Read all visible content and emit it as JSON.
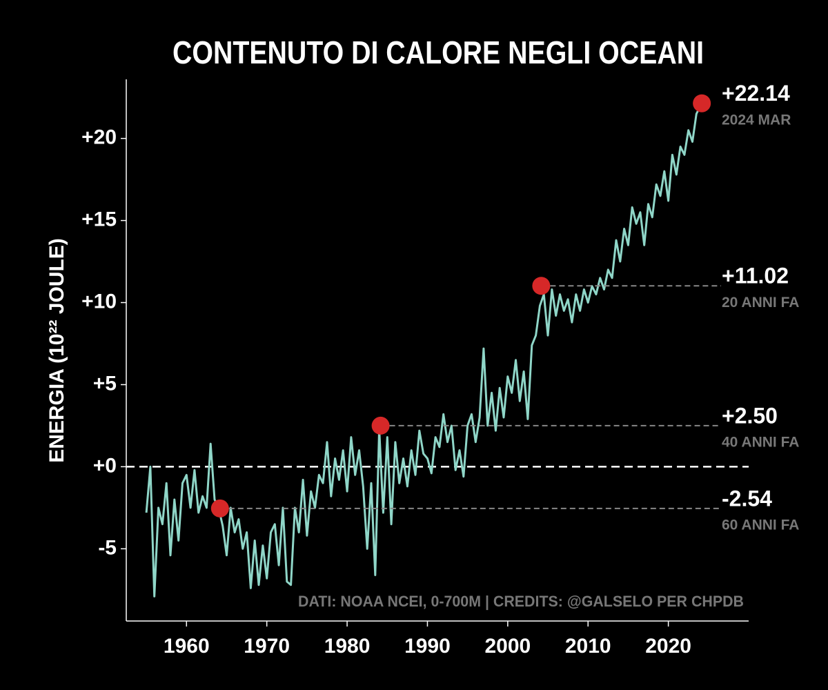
{
  "chart_data": {
    "type": "line",
    "title": "CONTENUTO DI CALORE NEGLI OCEANI",
    "y_label": "ENERGIA (10²² JOULE)",
    "credits": "DATI: NOAA NCEI, 0-700M | CREDITS: @GALSELO PER CHPDB",
    "xlim": [
      1952.5,
      2030
    ],
    "ylim": [
      -9.4,
      23.6
    ],
    "xticks": [
      1960,
      1970,
      1980,
      1990,
      2000,
      2010,
      2020
    ],
    "yticks": [
      -5,
      {
        "value": 0,
        "label": "+0"
      },
      {
        "value": 5,
        "label": "+5"
      },
      {
        "value": 10,
        "label": "+10"
      },
      {
        "value": 15,
        "label": "+15"
      },
      {
        "value": 20,
        "label": "+20"
      }
    ],
    "reference_line": 0,
    "x": [
      1955,
      1955.5,
      1956,
      1956.5,
      1957,
      1957.5,
      1958,
      1958.5,
      1959,
      1959.5,
      1960,
      1960.5,
      1961,
      1961.5,
      1962,
      1962.5,
      1963,
      1963.5,
      1964,
      1964.5,
      1965,
      1965.5,
      1966,
      1966.5,
      1967,
      1967.5,
      1968,
      1968.5,
      1969,
      1969.5,
      1970,
      1970.5,
      1971,
      1971.5,
      1972,
      1972.5,
      1973,
      1973.5,
      1974,
      1974.5,
      1975,
      1975.5,
      1976,
      1976.5,
      1977,
      1977.5,
      1978,
      1978.5,
      1979,
      1979.5,
      1980,
      1980.5,
      1981,
      1981.5,
      1982,
      1982.5,
      1983,
      1983.5,
      1984,
      1984.5,
      1985,
      1985.5,
      1986,
      1986.5,
      1987,
      1987.5,
      1988,
      1988.5,
      1989,
      1989.5,
      1990,
      1990.5,
      1991,
      1991.5,
      1992,
      1992.5,
      1993,
      1993.5,
      1994,
      1994.5,
      1995,
      1995.5,
      1996,
      1996.5,
      1997,
      1997.5,
      1998,
      1998.5,
      1999,
      1999.5,
      2000,
      2000.5,
      2001,
      2001.5,
      2002,
      2002.5,
      2003,
      2003.5,
      2004,
      2004.5,
      2005,
      2005.5,
      2006,
      2006.5,
      2007,
      2007.5,
      2008,
      2008.5,
      2009,
      2009.5,
      2010,
      2010.5,
      2011,
      2011.5,
      2012,
      2012.5,
      2013,
      2013.5,
      2014,
      2014.5,
      2015,
      2015.5,
      2016,
      2016.5,
      2017,
      2017.5,
      2018,
      2018.5,
      2019,
      2019.5,
      2020,
      2020.5,
      2021,
      2021.5,
      2022,
      2022.5,
      2023,
      2023.5,
      2024.17
    ],
    "series": [
      {
        "color": "#8fd6c8",
        "values": [
          -2.8,
          0.0,
          -7.9,
          -2.5,
          -3.5,
          -1.0,
          -5.4,
          -2.0,
          -4.5,
          -1.0,
          -0.5,
          -2.5,
          -0.2,
          -2.8,
          -1.8,
          -2.5,
          1.4,
          -2.0,
          -2.5,
          -3.6,
          -5.4,
          -2.5,
          -4.0,
          -3.2,
          -5.0,
          -4.0,
          -7.4,
          -4.5,
          -7.2,
          -4.8,
          -6.8,
          -4.0,
          -3.5,
          -6.0,
          -2.5,
          -7.0,
          -7.2,
          -2.5,
          -4.0,
          -0.8,
          -4.2,
          -1.5,
          -2.5,
          -0.5,
          -1.0,
          1.5,
          -1.8,
          0.5,
          -0.8,
          1.0,
          -1.5,
          1.8,
          -0.5,
          1.0,
          -1.2,
          -5.0,
          -1.0,
          -6.6,
          2.3,
          -2.8,
          1.8,
          -3.5,
          1.5,
          -1.0,
          0.5,
          -1.2,
          1.0,
          -0.5,
          2.2,
          0.8,
          0.5,
          -0.4,
          1.8,
          1.2,
          3.2,
          1.5,
          2.5,
          -0.2,
          1.0,
          -0.6,
          2.5,
          3.2,
          1.5,
          3.0,
          7.2,
          2.5,
          4.5,
          2.2,
          4.8,
          3.0,
          5.5,
          4.5,
          6.5,
          4.0,
          5.8,
          2.9,
          7.4,
          8.0,
          9.8,
          10.5,
          8.0,
          10.8,
          9.2,
          10.5,
          9.5,
          10.2,
          8.8,
          10.5,
          9.5,
          10.8,
          10.0,
          11.0,
          10.5,
          11.5,
          10.8,
          12.0,
          11.5,
          13.8,
          12.5,
          14.5,
          13.5,
          15.8,
          14.8,
          15.5,
          13.5,
          16.0,
          15.2,
          17.2,
          16.5,
          18.0,
          16.2,
          19.0,
          17.8,
          19.5,
          19.0,
          20.5,
          19.8,
          21.5,
          22.14
        ]
      }
    ],
    "point_color": "#d62828",
    "annotations": [
      {
        "x": 2024.17,
        "value": 22.14,
        "value_label": "+22.14",
        "label": "2024 MAR"
      },
      {
        "x": 2004.17,
        "value": 11.02,
        "value_label": "+11.02",
        "label": "20 ANNI FA"
      },
      {
        "x": 1984.17,
        "value": 2.5,
        "value_label": "+2.50",
        "label": "40 ANNI FA"
      },
      {
        "x": 1964.17,
        "value": -2.54,
        "value_label": "-2.54",
        "label": "60 ANNI FA"
      }
    ]
  }
}
